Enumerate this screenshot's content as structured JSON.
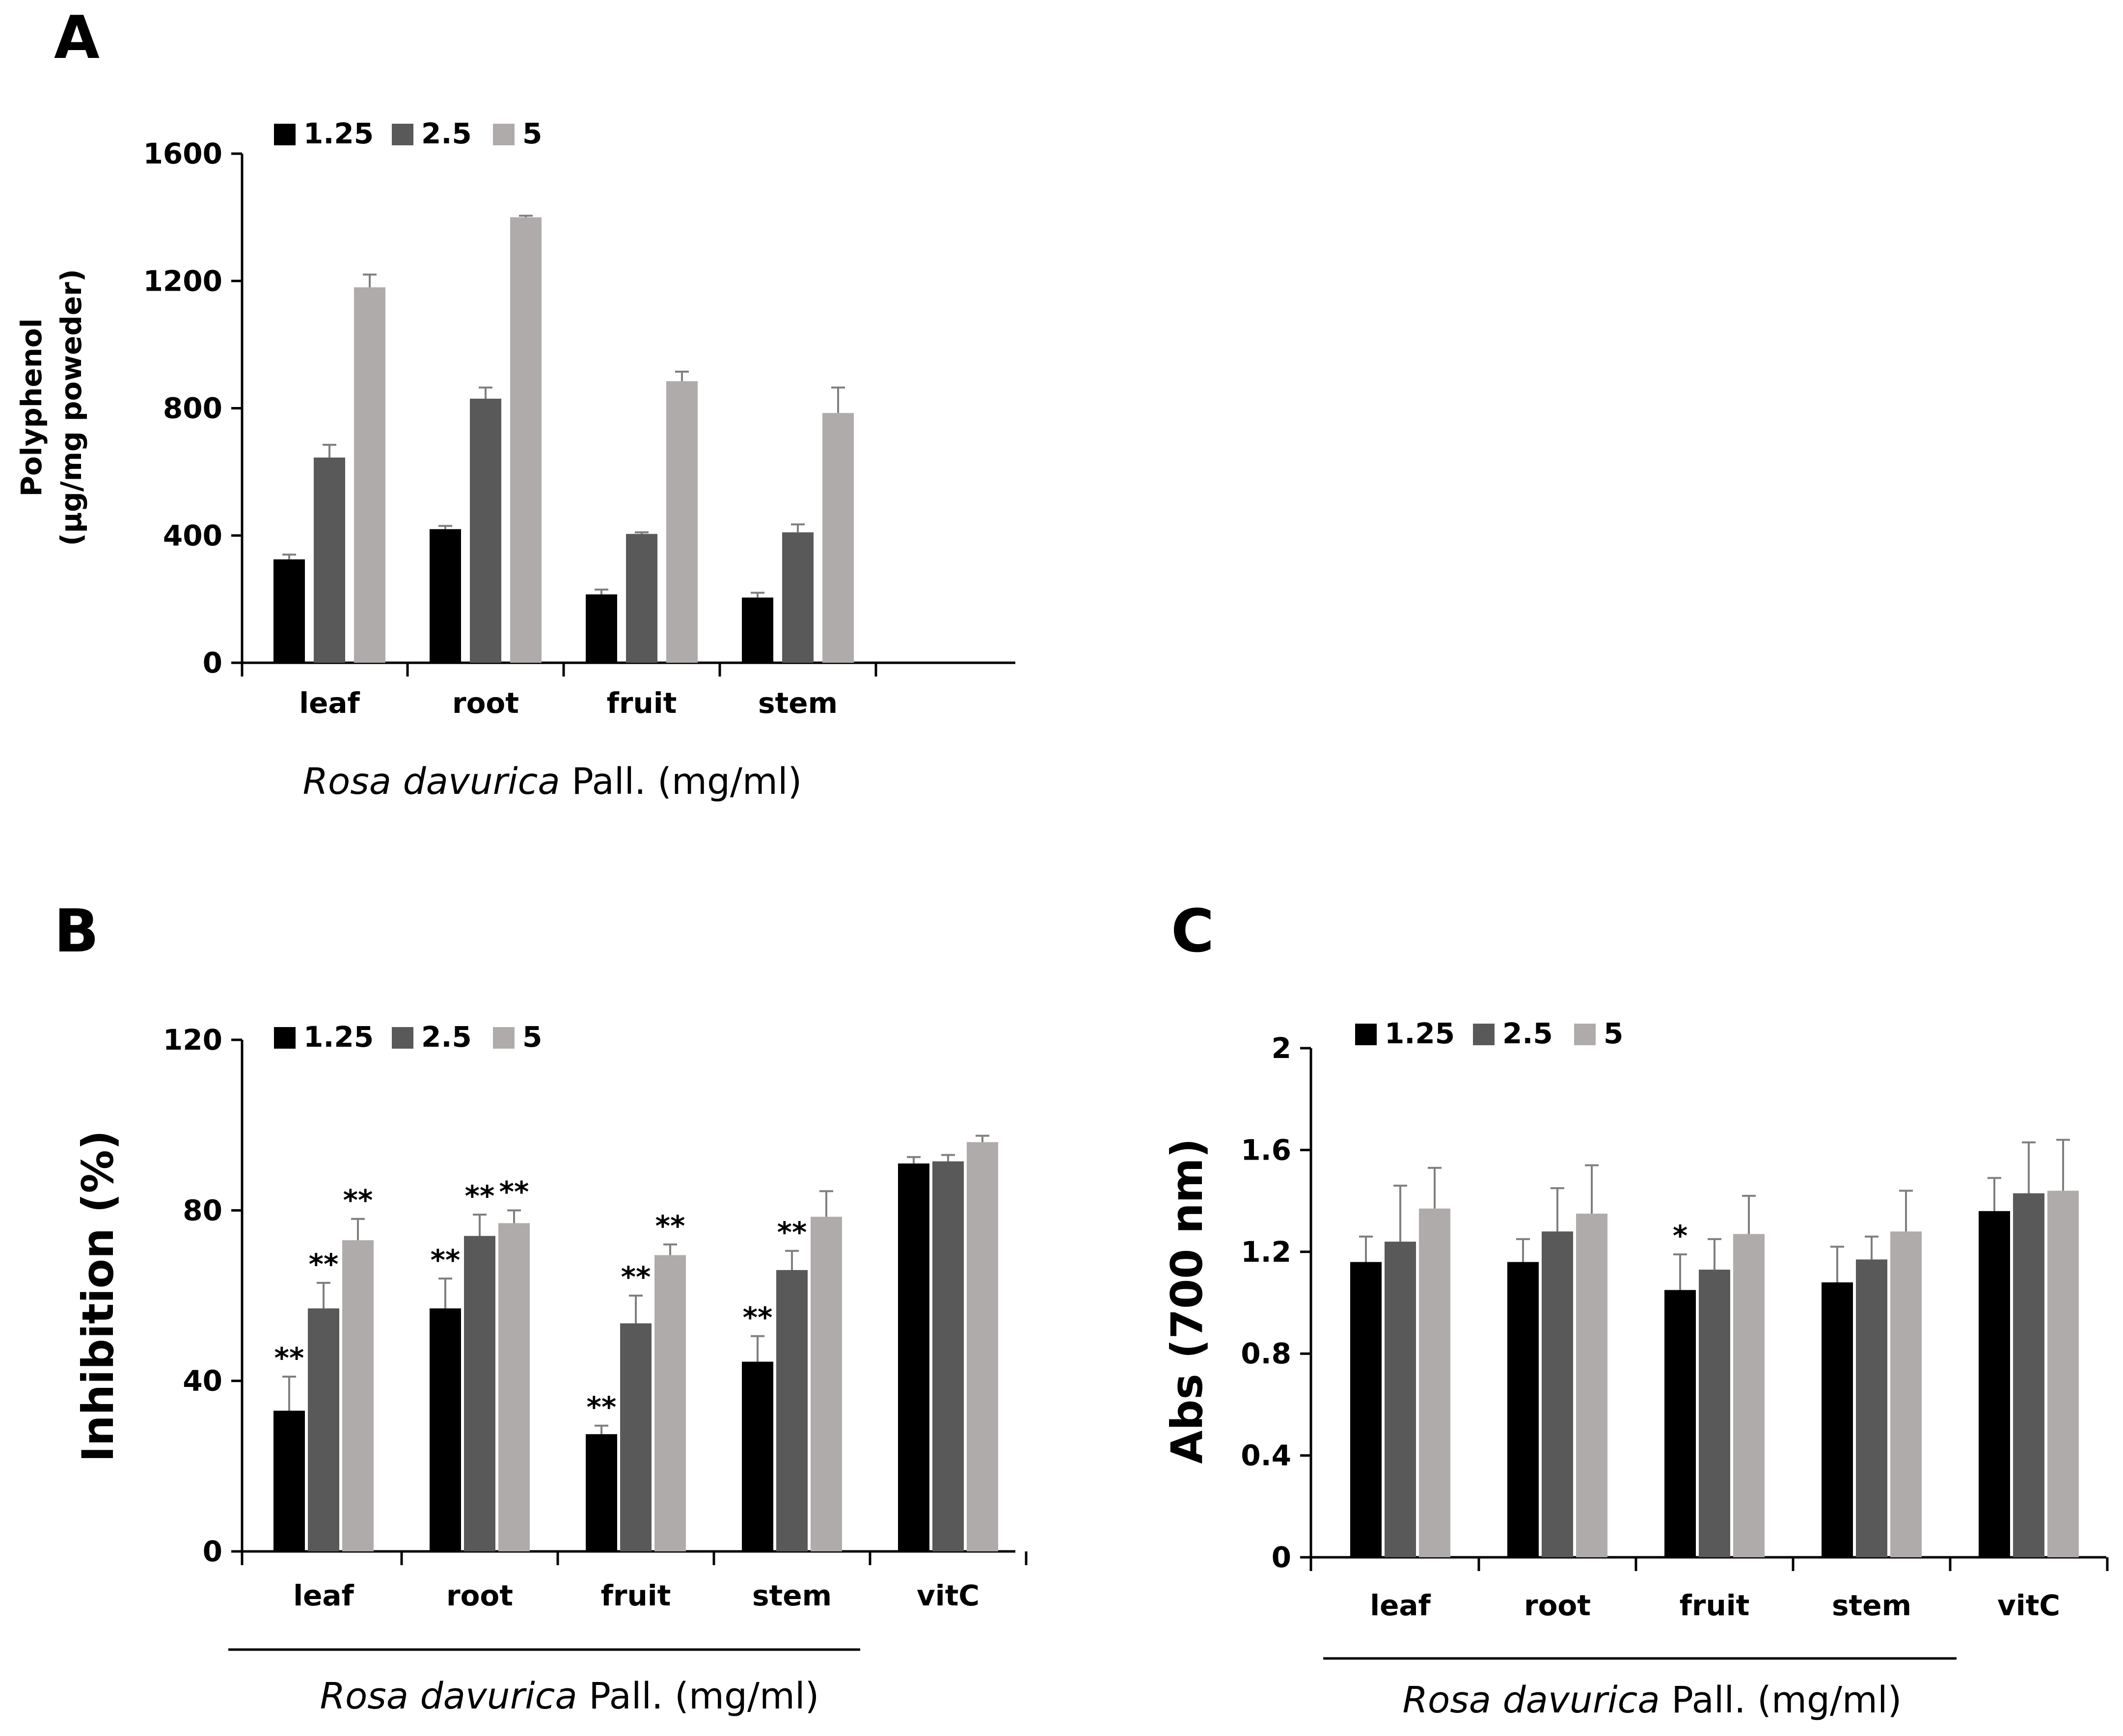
{
  "chart_data": [
    {
      "panel": "A",
      "type": "bar",
      "categories": [
        "leaf",
        "root",
        "fruit",
        "stem"
      ],
      "series": [
        {
          "name": "1.25",
          "values": [
            325,
            420,
            215,
            205
          ],
          "errors": [
            15,
            10,
            15,
            15
          ]
        },
        {
          "name": "2.5",
          "values": [
            645,
            830,
            405,
            410
          ],
          "errors": [
            40,
            35,
            5,
            25
          ]
        },
        {
          "name": "5",
          "values": [
            1180,
            1400,
            885,
            785
          ],
          "errors": [
            40,
            5,
            30,
            80
          ]
        }
      ],
      "ylabel_line1": "Polyphenol",
      "ylabel_line2": "(μg/mg poweder)",
      "xlabel_italic": "Rosa davurica",
      "xlabel_rest": "Pall. (mg/ml)",
      "ylim": [
        0,
        1600
      ],
      "yticks": [
        "0",
        "400",
        "800",
        "1200",
        "1600"
      ],
      "grid": false,
      "legend_position": "top-left"
    },
    {
      "panel": "B",
      "type": "bar",
      "categories": [
        "leaf",
        "root",
        "fruit",
        "stem",
        "vitC"
      ],
      "series": [
        {
          "name": "1.25",
          "values": [
            33,
            57,
            27.5,
            44.5,
            91
          ],
          "errors": [
            8,
            7,
            2,
            6,
            1.5
          ],
          "annotations": [
            "**",
            "**",
            "**",
            "**",
            ""
          ]
        },
        {
          "name": "2.5",
          "values": [
            57,
            74,
            53.5,
            66,
            91.5
          ],
          "errors": [
            6,
            5,
            6.5,
            4.5,
            1.5
          ],
          "annotations": [
            "**",
            "**",
            "**",
            "**",
            ""
          ]
        },
        {
          "name": "5",
          "values": [
            73,
            77,
            69.5,
            78.5,
            96
          ],
          "errors": [
            5,
            3,
            2.5,
            6,
            1.5
          ],
          "annotations": [
            "**",
            "**",
            "**",
            "",
            ""
          ]
        }
      ],
      "ylabel": "Inhibition (%)",
      "xlabel_italic": "Rosa davurica",
      "xlabel_rest": "Pall. (mg/ml)",
      "ylim": [
        0,
        120
      ],
      "yticks": [
        "0",
        "40",
        "80",
        "120"
      ],
      "grid": false,
      "legend_position": "top-left"
    },
    {
      "panel": "C",
      "type": "bar",
      "categories": [
        "leaf",
        "root",
        "fruit",
        "stem",
        "vitC"
      ],
      "series": [
        {
          "name": "1.25",
          "values": [
            1.16,
            1.16,
            1.05,
            1.08,
            1.36
          ],
          "errors": [
            0.1,
            0.09,
            0.14,
            0.14,
            0.13
          ],
          "annotations": [
            "",
            "",
            "*",
            "",
            ""
          ]
        },
        {
          "name": "2.5",
          "values": [
            1.24,
            1.28,
            1.13,
            1.17,
            1.43
          ],
          "errors": [
            0.22,
            0.17,
            0.12,
            0.09,
            0.2
          ],
          "annotations": [
            "",
            "",
            "",
            "",
            ""
          ]
        },
        {
          "name": "5",
          "values": [
            1.37,
            1.35,
            1.27,
            1.28,
            1.44
          ],
          "errors": [
            0.16,
            0.19,
            0.15,
            0.16,
            0.2
          ],
          "annotations": [
            "",
            "",
            "",
            "",
            ""
          ]
        }
      ],
      "ylabel": "Abs (700 nm)",
      "xlabel_italic": "Rosa davurica",
      "xlabel_rest": "Pall. (mg/ml)",
      "ylim": [
        0,
        2
      ],
      "yticks": [
        "0",
        "0.4",
        "0.8",
        "1.2",
        "1.6",
        "2"
      ],
      "grid": false,
      "legend_position": "top-left"
    }
  ],
  "colors": {
    "s1": "#000000",
    "s2": "#595959",
    "s3": "#afabab",
    "axis": "#000000",
    "errorbar": "#7f7f7f"
  }
}
